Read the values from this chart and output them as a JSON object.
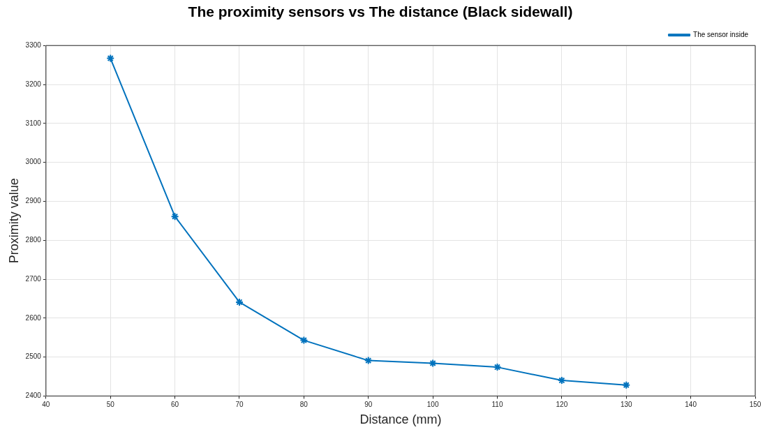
{
  "chart_data": {
    "type": "line",
    "title": "The proximity sensors vs The distance (Black sidewall)",
    "xlabel": "Distance (mm)",
    "ylabel": "Proximity value",
    "x": [
      50,
      60,
      70,
      80,
      90,
      100,
      110,
      120,
      130
    ],
    "series": [
      {
        "name": "The sensor inside",
        "color": "#0072bd",
        "values": [
          3267,
          2861,
          2641,
          2543,
          2491,
          2484,
          2474,
          2440,
          2428
        ]
      }
    ],
    "xlim": [
      40,
      150
    ],
    "xticks": [
      40,
      50,
      60,
      70,
      80,
      90,
      100,
      110,
      120,
      130,
      140,
      150
    ],
    "ylim": [
      2400,
      3300
    ],
    "yticks": [
      2400,
      2500,
      2600,
      2700,
      2800,
      2900,
      3000,
      3100,
      3200,
      3300
    ],
    "grid": true,
    "legend": "top right",
    "marker": "cross",
    "line_style": "solid"
  }
}
